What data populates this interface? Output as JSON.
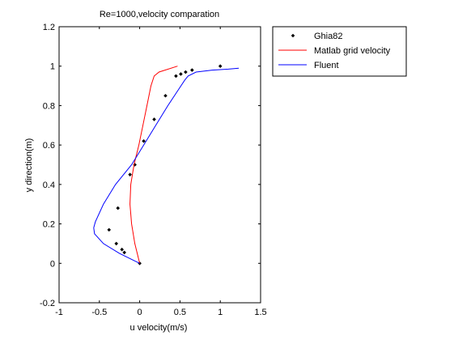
{
  "chart_data": {
    "type": "line",
    "title": "Re=1000,velocity comparation",
    "xlabel": "u velocity(m/s)",
    "ylabel": "y direction(m)",
    "xlim": [
      -1,
      1.5
    ],
    "ylim": [
      -0.2,
      1.2
    ],
    "xticks": [
      -1,
      -0.5,
      0,
      0.5,
      1,
      1.5
    ],
    "xtick_labels": [
      "-1",
      "-0.5",
      "0",
      "0.5",
      "1",
      "1.5"
    ],
    "yticks": [
      -0.2,
      0,
      0.2,
      0.4,
      0.6,
      0.8,
      1,
      1.2
    ],
    "ytick_labels": [
      "-0.2",
      "0",
      "0.2",
      "0.4",
      "0.6",
      "0.8",
      "1",
      "1.2"
    ],
    "grid": false,
    "legend_position": "outside-top-right",
    "series": [
      {
        "name": "Ghia82",
        "style": "markers",
        "color": "#000000",
        "x": [
          0.0,
          -0.19,
          -0.22,
          -0.29,
          -0.38,
          -0.27,
          -0.12,
          -0.06,
          0.05,
          0.18,
          0.32,
          0.45,
          0.51,
          0.57,
          0.65,
          1.0
        ],
        "y": [
          0.0,
          0.055,
          0.07,
          0.1,
          0.17,
          0.28,
          0.45,
          0.5,
          0.62,
          0.73,
          0.85,
          0.95,
          0.96,
          0.97,
          0.98,
          1.0
        ]
      },
      {
        "name": "Matlab grid velocity",
        "style": "line",
        "color": "#ff0000",
        "x": [
          0.0,
          -0.06,
          -0.1,
          -0.12,
          -0.11,
          -0.07,
          -0.01,
          0.04,
          0.09,
          0.14,
          0.18,
          0.24,
          0.47
        ],
        "y": [
          0.0,
          0.1,
          0.2,
          0.3,
          0.4,
          0.5,
          0.6,
          0.7,
          0.8,
          0.9,
          0.95,
          0.97,
          1.0
        ]
      },
      {
        "name": "Fluent",
        "style": "line",
        "color": "#0000ff",
        "x": [
          0.0,
          -0.25,
          -0.45,
          -0.56,
          -0.57,
          -0.55,
          -0.45,
          -0.3,
          -0.1,
          0.05,
          0.2,
          0.35,
          0.48,
          0.56,
          0.6,
          0.7,
          0.9,
          1.1,
          1.23
        ],
        "y": [
          0.0,
          0.05,
          0.1,
          0.15,
          0.18,
          0.21,
          0.3,
          0.4,
          0.5,
          0.6,
          0.7,
          0.8,
          0.88,
          0.93,
          0.95,
          0.97,
          0.98,
          0.985,
          0.99
        ]
      }
    ]
  }
}
